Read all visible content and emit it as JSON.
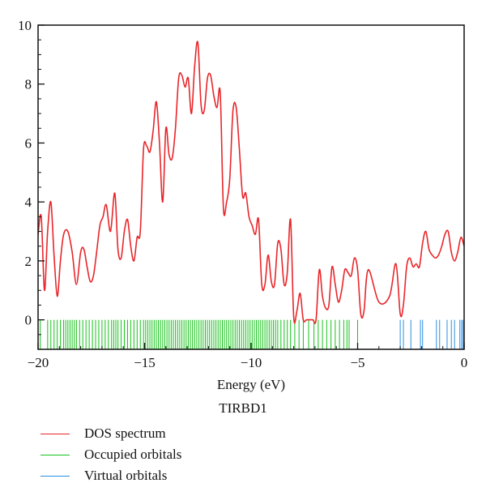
{
  "chart_data": {
    "type": "line",
    "title": "",
    "xlabel": "Energy (eV)",
    "ylabel": "",
    "xlim": [
      -20,
      0
    ],
    "ylim": [
      -1,
      10
    ],
    "xticks": [
      -20,
      -15,
      -10,
      -5,
      0
    ],
    "xtick_labels": [
      "−20",
      "−15",
      "−10",
      "−5",
      "0"
    ],
    "yticks": [
      0,
      2,
      4,
      6,
      8,
      10
    ],
    "ytick_labels": [
      "0",
      "2",
      "4",
      "6",
      "8",
      "10"
    ],
    "grid": false,
    "legend": {
      "title": "TIRBD1",
      "placement": "below",
      "entries": [
        {
          "label": "DOS spectrum",
          "color": "#e8262a"
        },
        {
          "label": "Occupied orbitals",
          "color": "#16c21a"
        },
        {
          "label": "Virtual orbitals",
          "color": "#2a8ee0"
        }
      ]
    },
    "series": [
      {
        "name": "DOS spectrum",
        "color": "#e8262a",
        "x": [
          -20.0,
          -19.85,
          -19.7,
          -19.55,
          -19.4,
          -19.25,
          -19.1,
          -18.95,
          -18.8,
          -18.6,
          -18.4,
          -18.2,
          -18.0,
          -17.85,
          -17.7,
          -17.55,
          -17.4,
          -17.25,
          -17.1,
          -16.95,
          -16.8,
          -16.6,
          -16.4,
          -16.25,
          -16.1,
          -15.95,
          -15.8,
          -15.65,
          -15.5,
          -15.35,
          -15.2,
          -15.05,
          -14.9,
          -14.75,
          -14.6,
          -14.45,
          -14.3,
          -14.15,
          -14.0,
          -13.85,
          -13.7,
          -13.55,
          -13.4,
          -13.25,
          -13.1,
          -12.95,
          -12.8,
          -12.65,
          -12.5,
          -12.35,
          -12.2,
          -12.05,
          -11.9,
          -11.75,
          -11.6,
          -11.45,
          -11.3,
          -11.15,
          -11.0,
          -10.85,
          -10.7,
          -10.55,
          -10.4,
          -10.25,
          -10.1,
          -9.95,
          -9.8,
          -9.65,
          -9.5,
          -9.35,
          -9.2,
          -9.05,
          -8.9,
          -8.75,
          -8.6,
          -8.45,
          -8.3,
          -8.15,
          -8.0,
          -7.85,
          -7.7,
          -7.55,
          -7.4,
          -7.25,
          -7.1,
          -6.95,
          -6.8,
          -6.65,
          -6.5,
          -6.35,
          -6.2,
          -6.05,
          -5.9,
          -5.75,
          -5.6,
          -5.45,
          -5.3,
          -5.15,
          -5.0,
          -4.85,
          -4.7,
          -4.5,
          -4.0,
          -3.5,
          -3.2,
          -3.0,
          -2.85,
          -2.7,
          -2.55,
          -2.4,
          -2.25,
          -2.1,
          -1.95,
          -1.8,
          -1.65,
          -1.5,
          -1.35,
          -1.2,
          -1.05,
          -0.9,
          -0.75,
          -0.6,
          -0.45,
          -0.3,
          -0.15,
          0.0
        ],
        "y": [
          2.9,
          3.5,
          1.0,
          3.0,
          4.0,
          2.2,
          0.8,
          2.0,
          2.9,
          3.0,
          2.3,
          1.2,
          2.3,
          2.4,
          1.8,
          1.3,
          1.5,
          2.3,
          3.2,
          3.5,
          3.9,
          3.0,
          4.3,
          2.4,
          2.1,
          3.0,
          3.4,
          2.5,
          2.0,
          2.8,
          3.0,
          5.8,
          5.9,
          5.7,
          6.4,
          7.4,
          6.0,
          4.0,
          6.5,
          5.6,
          5.5,
          6.5,
          8.2,
          8.3,
          7.9,
          8.2,
          7.0,
          8.6,
          9.4,
          7.3,
          7.1,
          8.2,
          8.3,
          7.6,
          7.2,
          7.7,
          3.8,
          4.0,
          4.8,
          7.1,
          7.2,
          5.8,
          4.2,
          4.3,
          3.5,
          3.2,
          2.9,
          3.4,
          1.2,
          1.2,
          2.2,
          1.3,
          1.2,
          2.6,
          2.4,
          1.2,
          1.6,
          3.4,
          0.1,
          0.3,
          0.9,
          0.0,
          0.0,
          0.0,
          0.0,
          0.0,
          1.7,
          0.8,
          0.4,
          0.5,
          1.8,
          1.2,
          0.6,
          1.0,
          1.7,
          1.6,
          1.5,
          2.1,
          1.7,
          0.2,
          0.3,
          1.7,
          0.6,
          0.8,
          1.9,
          0.2,
          0.5,
          1.8,
          2.1,
          1.8,
          1.9,
          1.8,
          2.6,
          3.0,
          2.4,
          2.2,
          2.1,
          2.2,
          2.5,
          2.9,
          3.0,
          2.3,
          2.0,
          2.3,
          2.8,
          2.5
        ]
      }
    ],
    "occupied_orbitals": [
      -19.9,
      -19.55,
      -19.4,
      -19.25,
      -19.1,
      -18.95,
      -18.8,
      -18.7,
      -18.6,
      -18.5,
      -18.4,
      -18.3,
      -18.2,
      -18.05,
      -17.9,
      -17.75,
      -17.6,
      -17.45,
      -17.3,
      -17.15,
      -17.0,
      -16.85,
      -16.7,
      -16.55,
      -16.45,
      -16.35,
      -16.25,
      -16.1,
      -15.95,
      -15.8,
      -15.65,
      -15.5,
      -15.35,
      -15.2,
      -15.05,
      -14.95,
      -14.85,
      -14.75,
      -14.65,
      -14.55,
      -14.45,
      -14.35,
      -14.25,
      -14.15,
      -14.05,
      -13.95,
      -13.85,
      -13.75,
      -13.65,
      -13.55,
      -13.45,
      -13.35,
      -13.25,
      -13.15,
      -13.05,
      -12.95,
      -12.85,
      -12.75,
      -12.65,
      -12.55,
      -12.45,
      -12.35,
      -12.25,
      -12.15,
      -12.05,
      -11.95,
      -11.85,
      -11.75,
      -11.65,
      -11.55,
      -11.45,
      -11.35,
      -11.25,
      -11.15,
      -11.05,
      -10.95,
      -10.85,
      -10.75,
      -10.65,
      -10.55,
      -10.45,
      -10.35,
      -10.25,
      -10.15,
      -10.05,
      -9.95,
      -9.85,
      -9.75,
      -9.65,
      -9.55,
      -9.45,
      -9.35,
      -9.25,
      -9.15,
      -9.05,
      -8.95,
      -8.85,
      -8.75,
      -8.6,
      -8.45,
      -8.3,
      -8.15,
      -7.95,
      -7.75,
      -7.55,
      -7.3,
      -7.05,
      -6.85,
      -6.65,
      -6.45,
      -6.25,
      -6.05,
      -5.85,
      -5.65,
      -5.5,
      -5.4,
      -5.0
    ],
    "virtual_orbitals": [
      -3.0,
      -2.85,
      -2.5,
      -2.05,
      -1.95,
      -1.3,
      -1.15,
      -0.8,
      -0.6,
      -0.45,
      -0.2,
      -0.12,
      -0.05
    ]
  }
}
